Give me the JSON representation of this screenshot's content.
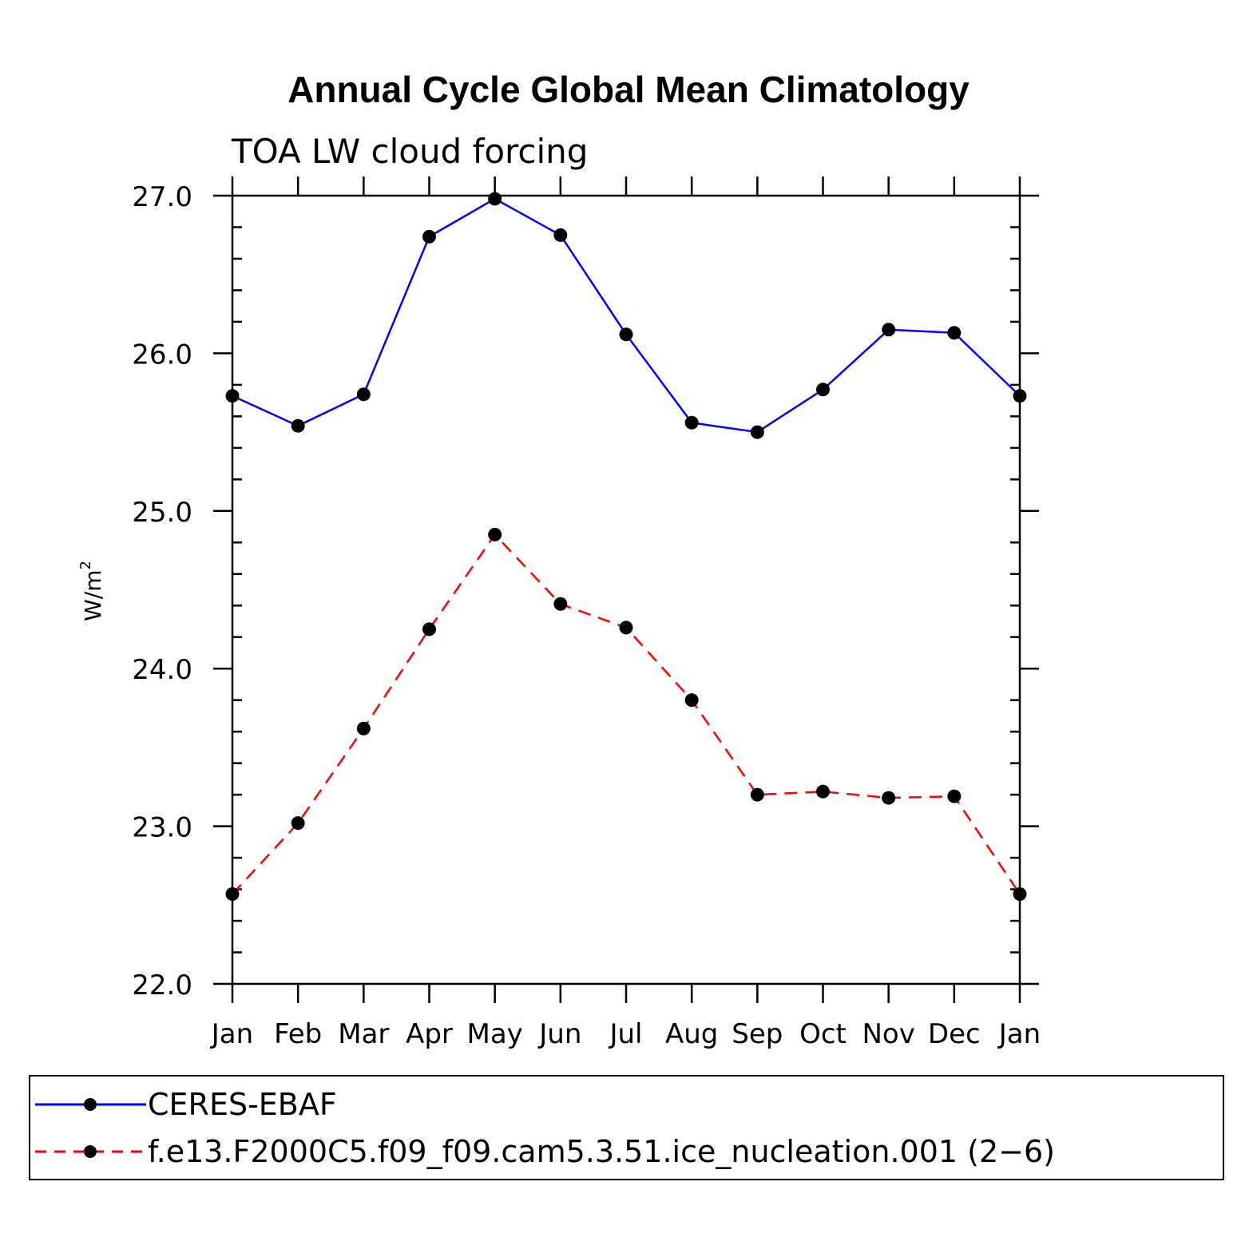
{
  "chart_data": {
    "type": "line",
    "title": "Annual Cycle Global Mean Climatology",
    "subtitle": "TOA LW cloud forcing",
    "xlabel": "",
    "ylabel": "W/m",
    "ylabel_superscript": "2",
    "categories": [
      "Jan",
      "Feb",
      "Mar",
      "Apr",
      "May",
      "Jun",
      "Jul",
      "Aug",
      "Sep",
      "Oct",
      "Nov",
      "Dec",
      "Jan"
    ],
    "ylim": [
      22.0,
      27.0
    ],
    "yticks": [
      "22.0",
      "23.0",
      "24.0",
      "25.0",
      "26.0",
      "27.0"
    ],
    "y_minor_step": 0.2,
    "grid": false,
    "legend_position": "bottom",
    "series": [
      {
        "name": "CERES-EBAF",
        "color": "#0000ff",
        "line_style": "solid",
        "marker": "filled-circle",
        "values": [
          25.73,
          25.54,
          25.74,
          26.74,
          26.98,
          26.75,
          26.12,
          25.56,
          25.5,
          25.77,
          26.15,
          26.13,
          25.73
        ]
      },
      {
        "name": "f.e13.F2000C5.f09_f09.cam5.3.51.ice_nucleation.001 (2−6)",
        "color": "#ff0000",
        "line_style": "dashed",
        "marker": "filled-circle",
        "values": [
          22.57,
          23.02,
          23.62,
          24.25,
          24.85,
          24.41,
          24.26,
          23.8,
          23.2,
          23.22,
          23.18,
          23.19,
          22.57
        ]
      }
    ]
  }
}
